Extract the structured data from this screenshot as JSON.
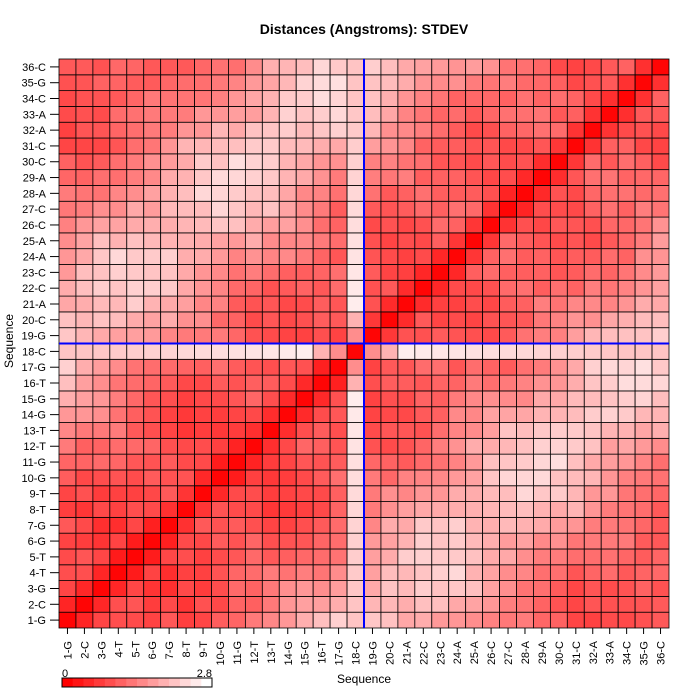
{
  "chart_data": {
    "type": "heatmap",
    "title": "Distances (Angstroms):  STDEV",
    "xlabel": "Sequence",
    "ylabel": "Sequence",
    "categories": [
      "1-G",
      "2-C",
      "3-G",
      "4-T",
      "5-T",
      "6-G",
      "7-G",
      "8-T",
      "9-T",
      "10-G",
      "11-G",
      "12-T",
      "13-T",
      "14-G",
      "15-G",
      "16-T",
      "17-G",
      "18-C",
      "19-G",
      "20-C",
      "21-A",
      "22-C",
      "23-C",
      "24-A",
      "25-A",
      "26-C",
      "27-C",
      "28-A",
      "29-A",
      "30-C",
      "31-C",
      "32-A",
      "33-A",
      "34-C",
      "35-G",
      "36-C"
    ],
    "colorbar": {
      "min_label": "0",
      "max_label": "2.8",
      "vmin": 0,
      "vmax": 2.8
    },
    "colors": {
      "low": "#ff0000",
      "high": "#ffffff",
      "cell_border": "#000000",
      "highlight": "#0000ff"
    },
    "highlight": {
      "row": "18-C",
      "column": "18-C"
    }
  }
}
